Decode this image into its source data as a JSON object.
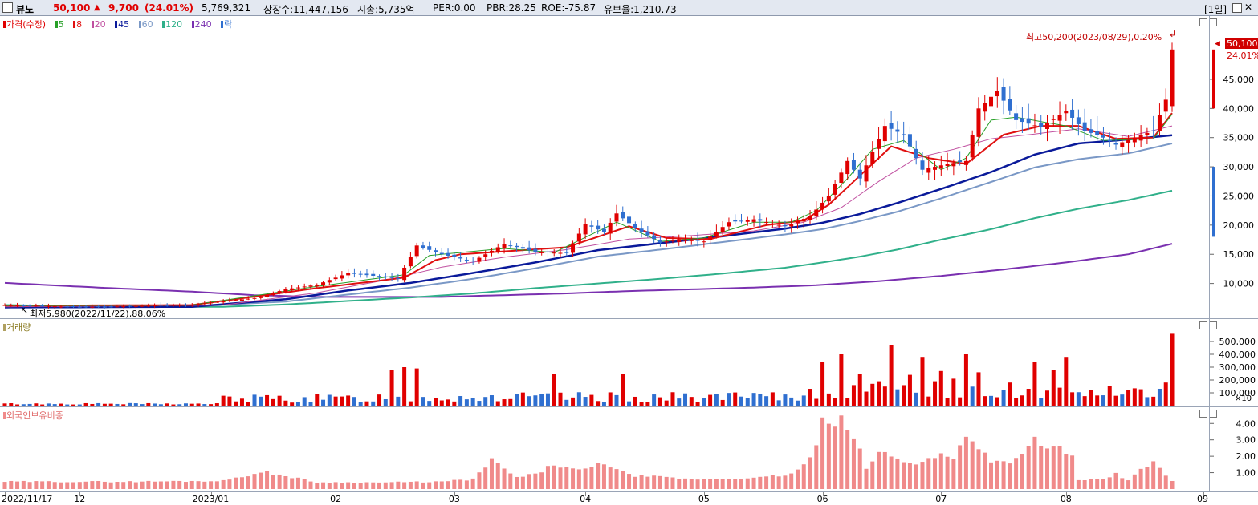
{
  "header": {
    "name": "뷰노",
    "price": "50,100",
    "change_arrow": "▲",
    "change": "9,700",
    "change_pct": "(24.01%)",
    "volume": "5,769,321",
    "listed": "상장수:11,447,156",
    "mcap": "시총:5,735억",
    "per": "PER:0.00",
    "pbr": "PBR:28.25",
    "roe": "ROE:-75.87",
    "reserve": "유보율:1,210.73",
    "period": "[1일]"
  },
  "legend_price": {
    "price": "가격(수정)",
    "ma5": "5",
    "ma8": "8",
    "ma20": "20",
    "ma45": "45",
    "ma60": "60",
    "ma120": "120",
    "ma240": "240",
    "down": "락"
  },
  "legend_volume": "거래량",
  "legend_foreign": "외국인보유비중",
  "annotations": {
    "high": "최고50,200(2023/08/29),0.20%",
    "low": "최저5,980(2022/11/22),88.06%",
    "last_price": "50,100",
    "last_pct": "24.01%",
    "vol_unit": "×10"
  },
  "colors": {
    "up": "#e00000",
    "down": "#2f6fd0",
    "ma5": "#28a028",
    "ma8": "#e01010",
    "ma20": "#c050a0",
    "ma45": "#0a1a9a",
    "ma60": "#7a98c6",
    "ma120": "#30b08a",
    "ma240": "#7a30b0",
    "foreign": "#f08a8a"
  },
  "chart_data": [
    {
      "type": "candlestick",
      "title": "가격(수정)",
      "ylim": [
        5000,
        52000
      ],
      "y_ticks": [
        "10,000",
        "15,000",
        "20,000",
        "25,000",
        "30,000",
        "35,000",
        "40,000",
        "45,000"
      ],
      "y_tick_values": [
        10000,
        15000,
        20000,
        25000,
        30000,
        35000,
        40000,
        45000
      ],
      "x_labels": [
        "2022/11/17",
        "12",
        "2023/01",
        "02",
        "03",
        "04",
        "05",
        "06",
        "07",
        "08",
        "09"
      ],
      "x_label_index": [
        0,
        12,
        33,
        53,
        72,
        93,
        112,
        131,
        150,
        170,
        192
      ],
      "price_control_points": [
        [
          0,
          6300
        ],
        [
          5,
          6200
        ],
        [
          10,
          6000
        ],
        [
          15,
          6000
        ],
        [
          20,
          6100
        ],
        [
          30,
          6400
        ],
        [
          40,
          7500
        ],
        [
          45,
          9000
        ],
        [
          50,
          9800
        ],
        [
          55,
          11800
        ],
        [
          60,
          11200
        ],
        [
          63,
          10800
        ],
        [
          66,
          16500
        ],
        [
          70,
          15000
        ],
        [
          75,
          13800
        ],
        [
          80,
          16800
        ],
        [
          85,
          15400
        ],
        [
          90,
          15200
        ],
        [
          93,
          20200
        ],
        [
          96,
          18800
        ],
        [
          98,
          22000
        ],
        [
          101,
          19500
        ],
        [
          105,
          17000
        ],
        [
          108,
          17600
        ],
        [
          112,
          17200
        ],
        [
          116,
          20500
        ],
        [
          120,
          21000
        ],
        [
          125,
          19800
        ],
        [
          129,
          21500
        ],
        [
          132,
          25000
        ],
        [
          135,
          31000
        ],
        [
          137,
          28000
        ],
        [
          141,
          37000
        ],
        [
          144,
          35500
        ],
        [
          147,
          29500
        ],
        [
          151,
          30500
        ],
        [
          154,
          31000
        ],
        [
          156,
          40000
        ],
        [
          159,
          43000
        ],
        [
          162,
          38000
        ],
        [
          166,
          36800
        ],
        [
          170,
          39500
        ],
        [
          173,
          36200
        ],
        [
          176,
          35000
        ],
        [
          178,
          33800
        ],
        [
          181,
          35000
        ],
        [
          184,
          36200
        ],
        [
          186,
          41500
        ],
        [
          187,
          50100
        ]
      ],
      "ma_control_points": {
        "ma5": [
          [
            0,
            6200
          ],
          [
            30,
            6300
          ],
          [
            50,
            9500
          ],
          [
            64,
            11500
          ],
          [
            68,
            14800
          ],
          [
            72,
            15200
          ],
          [
            80,
            16000
          ],
          [
            88,
            15300
          ],
          [
            98,
            20500
          ],
          [
            105,
            17200
          ],
          [
            112,
            17800
          ],
          [
            120,
            20500
          ],
          [
            126,
            20500
          ],
          [
            130,
            22500
          ],
          [
            135,
            28000
          ],
          [
            139,
            33000
          ],
          [
            144,
            34500
          ],
          [
            150,
            29500
          ],
          [
            154,
            31500
          ],
          [
            158,
            38000
          ],
          [
            162,
            38500
          ],
          [
            170,
            37000
          ],
          [
            176,
            34500
          ],
          [
            184,
            34800
          ],
          [
            187,
            39000
          ]
        ],
        "ma8": [
          [
            0,
            6200
          ],
          [
            30,
            6300
          ],
          [
            50,
            9200
          ],
          [
            64,
            11000
          ],
          [
            69,
            14000
          ],
          [
            73,
            15000
          ],
          [
            80,
            15500
          ],
          [
            90,
            16200
          ],
          [
            100,
            19800
          ],
          [
            106,
            17800
          ],
          [
            113,
            17600
          ],
          [
            122,
            20000
          ],
          [
            128,
            20800
          ],
          [
            132,
            23500
          ],
          [
            137,
            28500
          ],
          [
            142,
            33500
          ],
          [
            148,
            31500
          ],
          [
            154,
            30500
          ],
          [
            160,
            35500
          ],
          [
            166,
            37000
          ],
          [
            172,
            37000
          ],
          [
            178,
            34800
          ],
          [
            184,
            35000
          ],
          [
            187,
            39200
          ]
        ],
        "ma20": [
          [
            0,
            6000
          ],
          [
            35,
            6300
          ],
          [
            50,
            8400
          ],
          [
            62,
            10800
          ],
          [
            70,
            12800
          ],
          [
            80,
            14500
          ],
          [
            90,
            15800
          ],
          [
            100,
            17600
          ],
          [
            110,
            18200
          ],
          [
            120,
            19000
          ],
          [
            128,
            20500
          ],
          [
            134,
            23000
          ],
          [
            140,
            27500
          ],
          [
            146,
            31500
          ],
          [
            152,
            33000
          ],
          [
            158,
            34800
          ],
          [
            164,
            35500
          ],
          [
            172,
            36500
          ],
          [
            180,
            35200
          ],
          [
            187,
            37000
          ]
        ],
        "ma45": [
          [
            0,
            5900
          ],
          [
            30,
            6000
          ],
          [
            45,
            7300
          ],
          [
            55,
            8800
          ],
          [
            65,
            10100
          ],
          [
            75,
            11800
          ],
          [
            85,
            13600
          ],
          [
            95,
            15700
          ],
          [
            105,
            16900
          ],
          [
            115,
            18100
          ],
          [
            125,
            19400
          ],
          [
            131,
            20400
          ],
          [
            137,
            21900
          ],
          [
            143,
            23800
          ],
          [
            150,
            26200
          ],
          [
            158,
            29100
          ],
          [
            165,
            32100
          ],
          [
            172,
            34000
          ],
          [
            180,
            34700
          ],
          [
            187,
            35400
          ]
        ],
        "ma60": [
          [
            0,
            6000
          ],
          [
            30,
            6100
          ],
          [
            45,
            6900
          ],
          [
            55,
            8100
          ],
          [
            65,
            9300
          ],
          [
            75,
            10800
          ],
          [
            85,
            12600
          ],
          [
            95,
            14600
          ],
          [
            105,
            15800
          ],
          [
            115,
            17100
          ],
          [
            125,
            18400
          ],
          [
            131,
            19300
          ],
          [
            137,
            20700
          ],
          [
            143,
            22300
          ],
          [
            150,
            24600
          ],
          [
            158,
            27400
          ],
          [
            165,
            29900
          ],
          [
            172,
            31300
          ],
          [
            180,
            32300
          ],
          [
            187,
            34000
          ]
        ],
        "ma120": [
          [
            0,
            6300
          ],
          [
            20,
            6000
          ],
          [
            35,
            6000
          ],
          [
            45,
            6400
          ],
          [
            55,
            7000
          ],
          [
            65,
            7600
          ],
          [
            75,
            8300
          ],
          [
            85,
            9200
          ],
          [
            95,
            10000
          ],
          [
            105,
            10800
          ],
          [
            115,
            11700
          ],
          [
            125,
            12700
          ],
          [
            131,
            13600
          ],
          [
            137,
            14600
          ],
          [
            143,
            15800
          ],
          [
            150,
            17500
          ],
          [
            158,
            19300
          ],
          [
            165,
            21200
          ],
          [
            172,
            22800
          ],
          [
            180,
            24300
          ],
          [
            187,
            25900
          ]
        ],
        "ma240": [
          [
            0,
            10100
          ],
          [
            15,
            9300
          ],
          [
            30,
            8600
          ],
          [
            40,
            8000
          ],
          [
            50,
            7700
          ],
          [
            60,
            7700
          ],
          [
            70,
            7700
          ],
          [
            80,
            8000
          ],
          [
            90,
            8300
          ],
          [
            100,
            8700
          ],
          [
            110,
            9000
          ],
          [
            120,
            9300
          ],
          [
            130,
            9700
          ],
          [
            140,
            10400
          ],
          [
            150,
            11300
          ],
          [
            160,
            12400
          ],
          [
            170,
            13600
          ],
          [
            180,
            15000
          ],
          [
            187,
            16800
          ]
        ]
      }
    },
    {
      "type": "bar",
      "title": "거래량",
      "ylim": [
        0,
        600000
      ],
      "y_ticks": [
        "100,000",
        "200,000",
        "300,000",
        "400,000",
        "500,000"
      ],
      "y_tick_values": [
        100000,
        200000,
        300000,
        400000,
        500000
      ],
      "highlight_values": [
        [
          62,
          280000
        ],
        [
          64,
          300000
        ],
        [
          66,
          290000
        ],
        [
          88,
          245000
        ],
        [
          99,
          250000
        ],
        [
          131,
          340000
        ],
        [
          134,
          400000
        ],
        [
          136,
          160000
        ],
        [
          137,
          250000
        ],
        [
          139,
          170000
        ],
        [
          140,
          190000
        ],
        [
          142,
          475000
        ],
        [
          145,
          240000
        ],
        [
          147,
          380000
        ],
        [
          149,
          190000
        ],
        [
          150,
          270000
        ],
        [
          152,
          210000
        ],
        [
          154,
          400000
        ],
        [
          156,
          260000
        ],
        [
          161,
          180000
        ],
        [
          165,
          340000
        ],
        [
          168,
          280000
        ],
        [
          170,
          380000
        ],
        [
          186,
          180000
        ],
        [
          187,
          560000
        ]
      ]
    },
    {
      "type": "bar",
      "title": "외국인보유비중",
      "ylim": [
        0,
        4.6
      ],
      "y_ticks": [
        "1.00",
        "2.00",
        "3.00",
        "4.00"
      ],
      "y_tick_values": [
        1,
        2,
        3,
        4
      ],
      "control_points": [
        [
          0,
          0.45
        ],
        [
          20,
          0.45
        ],
        [
          35,
          0.5
        ],
        [
          38,
          0.8
        ],
        [
          42,
          1.0
        ],
        [
          45,
          0.8
        ],
        [
          50,
          0.4
        ],
        [
          60,
          0.4
        ],
        [
          70,
          0.45
        ],
        [
          75,
          0.6
        ],
        [
          78,
          1.75
        ],
        [
          82,
          0.7
        ],
        [
          85,
          0.9
        ],
        [
          88,
          1.5
        ],
        [
          92,
          1.1
        ],
        [
          96,
          1.6
        ],
        [
          100,
          0.85
        ],
        [
          110,
          0.6
        ],
        [
          120,
          0.65
        ],
        [
          126,
          0.9
        ],
        [
          129,
          1.8
        ],
        [
          131,
          4.0
        ],
        [
          133,
          3.8
        ],
        [
          134,
          4.1
        ],
        [
          136,
          3.3
        ],
        [
          138,
          1.2
        ],
        [
          140,
          2.3
        ],
        [
          143,
          1.8
        ],
        [
          146,
          1.6
        ],
        [
          148,
          1.8
        ],
        [
          150,
          2.1
        ],
        [
          152,
          1.8
        ],
        [
          154,
          3.5
        ],
        [
          156,
          2.5
        ],
        [
          158,
          1.8
        ],
        [
          160,
          1.6
        ],
        [
          163,
          2.0
        ],
        [
          165,
          3.0
        ],
        [
          167,
          2.4
        ],
        [
          169,
          2.6
        ],
        [
          171,
          2.0
        ],
        [
          172,
          0.5
        ],
        [
          176,
          0.6
        ],
        [
          178,
          0.9
        ],
        [
          180,
          0.5
        ],
        [
          182,
          1.3
        ],
        [
          184,
          1.6
        ],
        [
          186,
          0.8
        ],
        [
          187,
          0.5
        ]
      ]
    }
  ]
}
